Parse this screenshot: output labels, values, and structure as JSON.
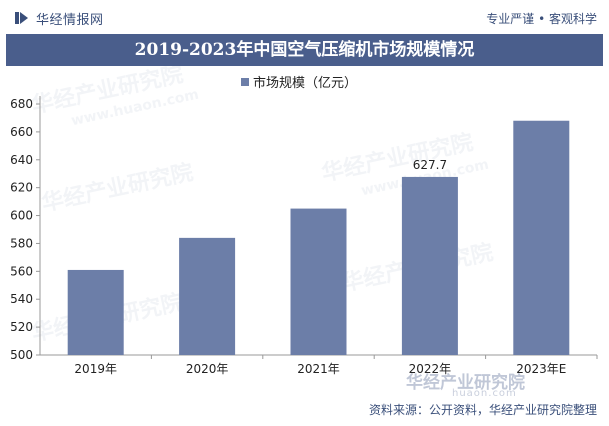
{
  "header": {
    "brand": "华经情报网",
    "slogan": "专业严谨 • 客观科学"
  },
  "footer": {
    "logo_text": "华经产业研究院",
    "url": "huaon.com",
    "source": "资料来源：公开资料，华经产业研究院整理"
  },
  "watermarks": [
    "华经产业研究院",
    "www.huaon.com"
  ],
  "colors": {
    "bar": "#6c7ea8",
    "title_bg": "#4a5e8c",
    "brand": "#3a4f7a"
  },
  "chart_data": {
    "type": "bar",
    "title": "2019-2023年中国空气压缩机市场规模情况",
    "categories": [
      "2019年",
      "2020年",
      "2021年",
      "2022年",
      "2023年E"
    ],
    "series": [
      {
        "name": "市场规模（亿元）",
        "values": [
          561,
          584,
          605,
          627.7,
          668
        ]
      }
    ],
    "data_labels": [
      {
        "index": 3,
        "text": "627.7"
      }
    ],
    "ylim": [
      500,
      680
    ],
    "yticks": [
      500,
      520,
      540,
      560,
      580,
      600,
      620,
      640,
      660,
      680
    ],
    "xlabel": "",
    "ylabel": "",
    "legend_position": "top-center",
    "grid": false
  }
}
